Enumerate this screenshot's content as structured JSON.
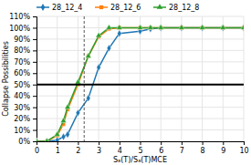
{
  "chart_data": {
    "type": "line",
    "xlabel": "Sₐ(T)/Sₐ(T)MCE",
    "ylabel": "Collapse Possibilities",
    "x": [
      0.0,
      0.5,
      1.0,
      1.3,
      1.5,
      2.0,
      2.5,
      3.0,
      3.5,
      4.0,
      5.0,
      5.5,
      6.0,
      7.0,
      8.0,
      9.0,
      10.0
    ],
    "series": [
      {
        "name": "28_12_4",
        "marker": "diamond",
        "values": [
          0.0,
          0.0,
          0.01,
          0.04,
          0.06,
          0.25,
          0.38,
          0.65,
          0.82,
          0.95,
          0.97,
          0.99,
          1.0,
          1.0,
          1.0,
          1.0,
          1.0
        ]
      },
      {
        "name": "28_12_6",
        "marker": "square",
        "values": [
          0.0,
          0.0,
          0.05,
          0.15,
          0.28,
          0.5,
          0.75,
          0.92,
          0.99,
          1.0,
          1.0,
          1.0,
          1.0,
          1.0,
          1.0,
          1.0,
          1.0
        ]
      },
      {
        "name": "28_12_8",
        "marker": "triangle",
        "values": [
          0.0,
          0.0,
          0.06,
          0.18,
          0.3,
          0.52,
          0.75,
          0.93,
          1.0,
          1.0,
          1.0,
          1.0,
          1.0,
          1.0,
          1.0,
          1.0,
          1.0
        ]
      }
    ],
    "reference_lines": [
      {
        "axis": "x",
        "value": 2.3,
        "line_style": "dashed"
      },
      {
        "axis": "y",
        "value": 0.5,
        "line_style": "solid"
      }
    ],
    "xlim": [
      0.0,
      10.0
    ],
    "ylim": [
      0.0,
      1.1
    ],
    "xticks": [
      0,
      1,
      2,
      3,
      4,
      5,
      6,
      7,
      8,
      9,
      10
    ],
    "yticks": [
      {
        "value": 0.0,
        "label": "0%"
      },
      {
        "value": 0.1,
        "label": "10%"
      },
      {
        "value": 0.2,
        "label": "20%"
      },
      {
        "value": 0.3,
        "label": "30%"
      },
      {
        "value": 0.4,
        "label": "40%"
      },
      {
        "value": 0.5,
        "label": "50%"
      },
      {
        "value": 0.6,
        "label": "60%"
      },
      {
        "value": 0.7,
        "label": "70%"
      },
      {
        "value": 0.8,
        "label": "80%"
      },
      {
        "value": 0.9,
        "label": "90%"
      },
      {
        "value": 1.0,
        "label": "100%"
      },
      {
        "value": 1.1,
        "label": "110%"
      }
    ],
    "grid": true,
    "legend": "top"
  }
}
